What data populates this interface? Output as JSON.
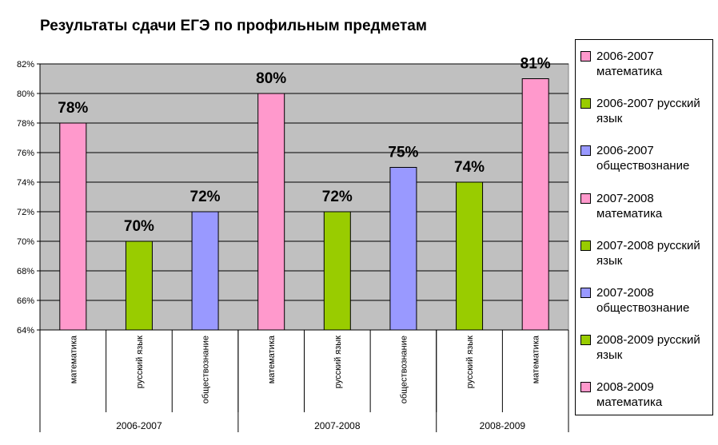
{
  "colors": {
    "pink": "#ff99cc",
    "green": "#99cc00",
    "blue": "#9999ff",
    "plot_bg": "#c0c0c0"
  },
  "chart_data": {
    "type": "bar",
    "title": "Результаты сдачи ЕГЭ по профильным предметам",
    "ylim": [
      64,
      82
    ],
    "yticks": [
      "64%",
      "66%",
      "68%",
      "70%",
      "72%",
      "74%",
      "76%",
      "78%",
      "80%",
      "82%"
    ],
    "grid": true,
    "legend_position": "right",
    "groups": [
      {
        "label": "2006-2007",
        "count": 3
      },
      {
        "label": "2007-2008",
        "count": 3
      },
      {
        "label": "2008-2009",
        "count": 2
      }
    ],
    "bars": [
      {
        "category": "математика",
        "value": 78,
        "label": "78%",
        "color": "pink"
      },
      {
        "category": "русский язык",
        "value": 70,
        "label": "70%",
        "color": "green"
      },
      {
        "category": "обществознание",
        "value": 72,
        "label": "72%",
        "color": "blue"
      },
      {
        "category": "математика",
        "value": 80,
        "label": "80%",
        "color": "pink"
      },
      {
        "category": "русский язык",
        "value": 72,
        "label": "72%",
        "color": "green"
      },
      {
        "category": "обществознание",
        "value": 75,
        "label": "75%",
        "color": "blue"
      },
      {
        "category": "русский язык",
        "value": 74,
        "label": "74%",
        "color": "green"
      },
      {
        "category": "математика",
        "value": 81,
        "label": "81%",
        "color": "pink"
      }
    ],
    "legend": [
      {
        "text": "2006-2007 математика",
        "color": "pink"
      },
      {
        "text": "2006-2007 русский язык",
        "color": "green"
      },
      {
        "text": "2006-2007 обществознание",
        "color": "blue"
      },
      {
        "text": "2007-2008 математика",
        "color": "pink"
      },
      {
        "text": "2007-2008 русский язык",
        "color": "green"
      },
      {
        "text": "2007-2008 обществознание",
        "color": "blue"
      },
      {
        "text": "2008-2009 русский язык",
        "color": "green"
      },
      {
        "text": "2008-2009 математика",
        "color": "pink"
      }
    ]
  }
}
